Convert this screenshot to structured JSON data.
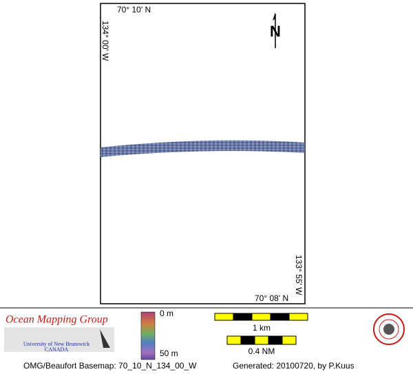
{
  "map": {
    "labels": {
      "top_lat": "70° 10' N",
      "left_lon": "134° 00' W",
      "right_lon": "133° 55' W",
      "bottom_lat": "70° 08' N",
      "north": "N"
    }
  },
  "legend": {
    "group": "Ocean Mapping Group",
    "university": "University of New Brunswick",
    "country": "CANADA",
    "depth_min": "0 m",
    "depth_max": "50 m",
    "scale_km": "1 km",
    "scale_nm": "0.4 NM"
  },
  "footer": {
    "basemap": "OMG/Beaufort Basemap: 70_10_N_134_00_W",
    "generated": "Generated: 20100720, by P.Kuus"
  }
}
